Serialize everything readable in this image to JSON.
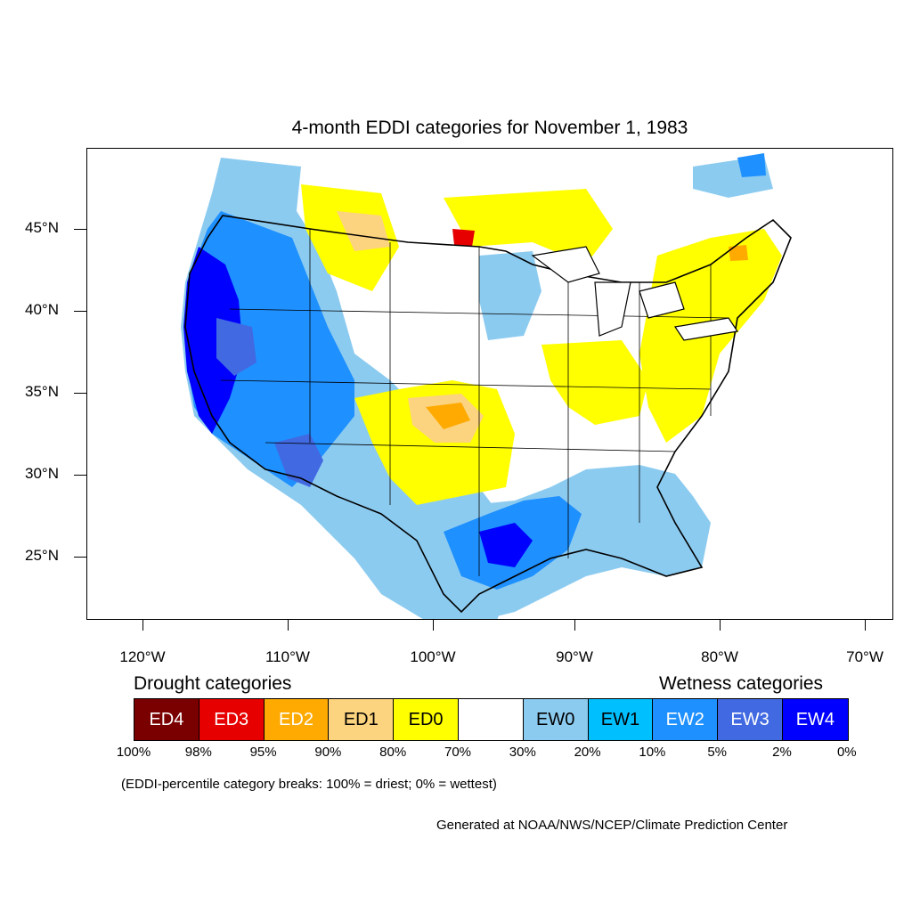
{
  "title": "4-month EDDI categories for November 1, 1983",
  "map": {
    "latitude_labels": [
      "45°N",
      "40°N",
      "35°N",
      "30°N",
      "25°N"
    ],
    "longitude_labels": [
      "120°W",
      "110°W",
      "100°W",
      "90°W",
      "80°W",
      "70°W"
    ],
    "region": "Contiguous United States and surrounding areas",
    "dominant_patterns": {
      "wet_far_west": "EW2–EW4 along the Pacific coast and Great Basin",
      "wet_gulf": "EW2–EW4 across eastern Texas and Gulf coast",
      "dry_plains": "ED0–ED3 in southern Plains, northern Plains and Midwest"
    }
  },
  "legend": {
    "drought_heading": "Drought categories",
    "wetness_heading": "Wetness categories",
    "categories": [
      {
        "label": "ED4",
        "color": "#7a0000",
        "text_color": "#ffffff"
      },
      {
        "label": "ED3",
        "color": "#e60000",
        "text_color": "#ffffff"
      },
      {
        "label": "ED2",
        "color": "#ffaa00",
        "text_color": "#ffffff"
      },
      {
        "label": "ED1",
        "color": "#fcd37f",
        "text_color": "#000000"
      },
      {
        "label": "ED0",
        "color": "#ffff00",
        "text_color": "#000000"
      },
      {
        "label": "",
        "color": "#ffffff",
        "text_color": "#000000"
      },
      {
        "label": "EW0",
        "color": "#8ccbf0",
        "text_color": "#000000"
      },
      {
        "label": "EW1",
        "color": "#00bfff",
        "text_color": "#000000"
      },
      {
        "label": "EW2",
        "color": "#1e90ff",
        "text_color": "#ffffff"
      },
      {
        "label": "EW3",
        "color": "#4169e1",
        "text_color": "#ffffff"
      },
      {
        "label": "EW4",
        "color": "#0000ff",
        "text_color": "#ffffff"
      }
    ],
    "percent_breaks": [
      "100%",
      "98%",
      "95%",
      "90%",
      "80%",
      "70%",
      "30%",
      "20%",
      "10%",
      "5%",
      "2%",
      "0%"
    ]
  },
  "note": "(EDDI-percentile category breaks: 100% = driest; 0% = wettest)",
  "credit": "Generated at NOAA/NWS/NCEP/Climate Prediction Center"
}
